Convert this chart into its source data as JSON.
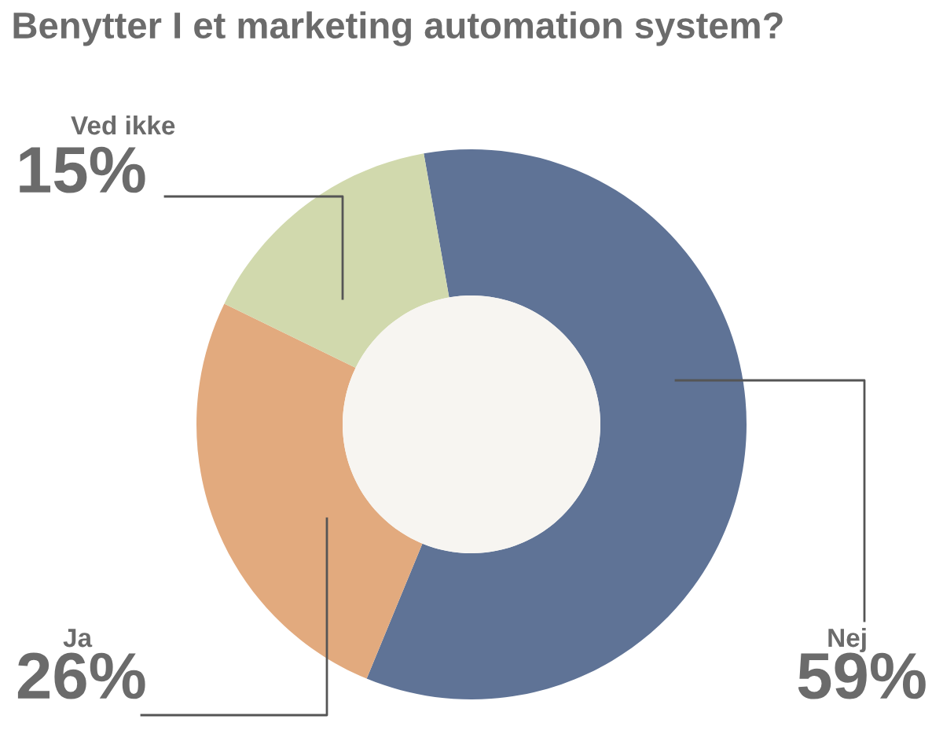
{
  "chart_data": {
    "type": "donut",
    "title": "Benytter I et marketing automation system?",
    "categories": [
      "Nej",
      "Ja",
      "Ved ikke"
    ],
    "values": [
      59,
      26,
      15
    ],
    "value_labels": [
      "59%",
      "26%",
      "15%"
    ],
    "colors": [
      "#5f7396",
      "#e2aa7e",
      "#d1d9ad"
    ],
    "legend": false
  }
}
